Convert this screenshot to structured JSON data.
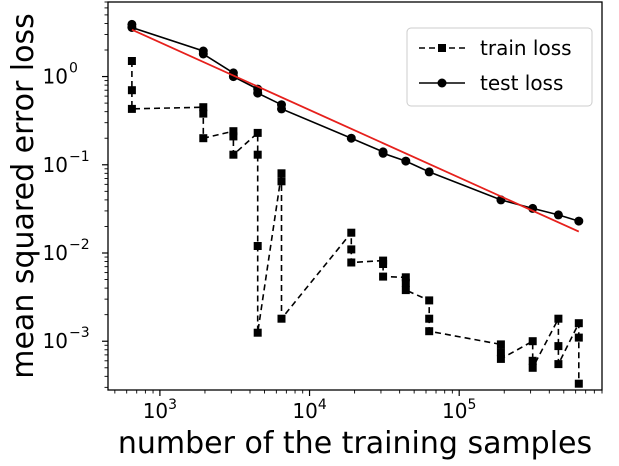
{
  "chart_data": {
    "type": "line",
    "title": "",
    "xlabel": "number of the training samples",
    "ylabel": "mean squared error loss",
    "x_scale": "log",
    "y_scale": "log",
    "xlim": [
      450,
      900000
    ],
    "ylim": [
      0.00028,
      7
    ],
    "grid": false,
    "legend_position": "top-right",
    "x_ticks": [
      {
        "value": 1000,
        "base": "10",
        "exp": "3"
      },
      {
        "value": 10000,
        "base": "10",
        "exp": "4"
      },
      {
        "value": 100000,
        "base": "10",
        "exp": "5"
      }
    ],
    "y_ticks": [
      {
        "value": 1,
        "base": "10",
        "exp": "0"
      },
      {
        "value": 0.1,
        "base": "10",
        "exp": "−1"
      },
      {
        "value": 0.01,
        "base": "10",
        "exp": "−2"
      },
      {
        "value": 0.001,
        "base": "10",
        "exp": "−3"
      }
    ],
    "series": [
      {
        "name": "train loss",
        "color": "#000000",
        "line_style": "dashed",
        "marker": "square",
        "x": [
          650,
          650,
          650,
          1950,
          1950,
          1950,
          3100,
          3100,
          3100,
          4500,
          4500,
          4500,
          4500,
          6500,
          6500,
          6500,
          19000,
          19000,
          19000,
          31000,
          31000,
          31000,
          44000,
          44000,
          44000,
          63000,
          63000,
          63000,
          190000,
          190000,
          190000,
          310000,
          310000,
          310000,
          460000,
          460000,
          460000,
          630000,
          630000,
          630000
        ],
        "y": [
          1.5,
          0.7,
          0.43,
          0.45,
          0.38,
          0.2,
          0.24,
          0.21,
          0.13,
          0.23,
          0.13,
          0.012,
          0.00125,
          0.08,
          0.065,
          0.0018,
          0.017,
          0.011,
          0.0078,
          0.0082,
          0.0075,
          0.0054,
          0.0053,
          0.0046,
          0.0038,
          0.0029,
          0.0018,
          0.0013,
          0.00092,
          0.00075,
          0.00063,
          0.001,
          0.0006,
          0.0005,
          0.0018,
          0.00088,
          0.00055,
          0.0016,
          0.0011,
          0.00033
        ]
      },
      {
        "name": "test loss",
        "color": "#000000",
        "line_style": "solid",
        "marker": "circle",
        "x": [
          650,
          650,
          1950,
          1950,
          3100,
          3100,
          4500,
          4500,
          6500,
          6500,
          19000,
          31000,
          31000,
          44000,
          63000,
          190000,
          310000,
          460000,
          630000
        ],
        "y": [
          3.9,
          3.6,
          1.95,
          1.8,
          1.1,
          1.0,
          0.72,
          0.65,
          0.48,
          0.43,
          0.2,
          0.14,
          0.135,
          0.11,
          0.083,
          0.04,
          0.032,
          0.027,
          0.023
        ]
      },
      {
        "color": "#e6201c",
        "line_style": "solid",
        "marker": "none",
        "x": [
          650,
          630000
        ],
        "y": [
          3.4,
          0.0175
        ]
      }
    ]
  }
}
